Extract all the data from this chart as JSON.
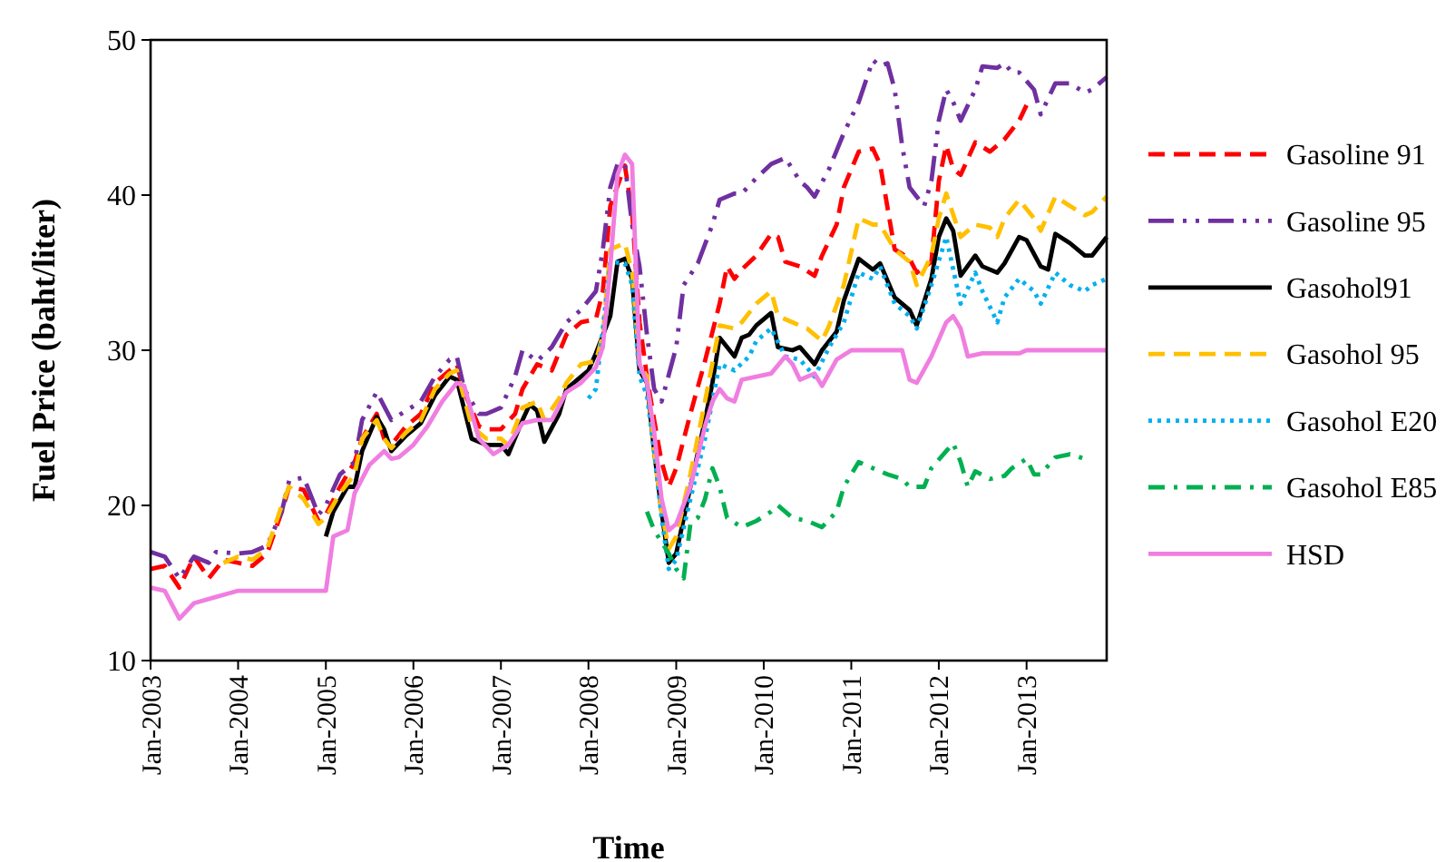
{
  "chart_data": {
    "type": "line",
    "xlabel": "Time",
    "ylabel": "Fuel Price (baht/liter)",
    "xlim": [
      "2003-01",
      "2013-12"
    ],
    "xticks": [
      {
        "value": "2003-01",
        "label": "Jan-2003"
      },
      {
        "value": "2004-01",
        "label": "Jan-2004"
      },
      {
        "value": "2005-01",
        "label": "Jan-2005"
      },
      {
        "value": "2006-01",
        "label": "Jan-2006"
      },
      {
        "value": "2007-01",
        "label": "Jan-2007"
      },
      {
        "value": "2008-01",
        "label": "Jan-2008"
      },
      {
        "value": "2009-01",
        "label": "Jan-2009"
      },
      {
        "value": "2010-01",
        "label": "Jan-2010"
      },
      {
        "value": "2011-01",
        "label": "Jan-2011"
      },
      {
        "value": "2012-01",
        "label": "Jan-2012"
      },
      {
        "value": "2013-01",
        "label": "Jan-2013"
      }
    ],
    "ylim": [
      10,
      50
    ],
    "yticks": [
      10,
      20,
      30,
      40,
      50
    ],
    "grid": false,
    "legend": "right",
    "marker": "none",
    "series": [
      {
        "name": "Gasoline 91",
        "color": "#ff0000",
        "line_style": "dashed",
        "x": [
          "2003-01",
          "2003-03",
          "2003-05",
          "2003-07",
          "2003-09",
          "2003-11",
          "2004-01",
          "2004-03",
          "2004-05",
          "2004-07",
          "2004-08",
          "2004-10",
          "2004-12",
          "2005-01",
          "2005-03",
          "2005-05",
          "2005-06",
          "2005-08",
          "2005-09",
          "2005-10",
          "2005-12",
          "2006-02",
          "2006-04",
          "2006-06",
          "2006-07",
          "2006-08",
          "2006-10",
          "2006-11",
          "2007-01",
          "2007-03",
          "2007-04",
          "2007-06",
          "2007-08",
          "2007-10",
          "2007-12",
          "2008-02",
          "2008-03",
          "2008-04",
          "2008-06",
          "2008-07",
          "2008-08",
          "2008-09",
          "2008-10",
          "2008-11",
          "2008-12",
          "2009-01",
          "2009-03",
          "2009-05",
          "2009-07",
          "2009-08",
          "2009-09",
          "2009-10",
          "2009-12",
          "2010-02",
          "2010-03",
          "2010-04",
          "2010-06",
          "2010-08",
          "2010-09",
          "2010-11",
          "2010-12",
          "2011-02",
          "2011-04",
          "2011-05",
          "2011-07",
          "2011-09",
          "2011-10",
          "2011-12",
          "2012-01",
          "2012-02",
          "2012-03",
          "2012-04",
          "2012-06",
          "2012-08",
          "2012-10",
          "2012-12",
          "2013-01",
          "2013-02"
        ],
        "values": [
          15.9,
          16.1,
          14.7,
          16.7,
          15.3,
          16.5,
          16.3,
          16.1,
          16.9,
          19.6,
          21.2,
          21.0,
          19.0,
          19.4,
          21.2,
          22.8,
          24.3,
          25.9,
          24.3,
          23.9,
          25.1,
          25.9,
          27.9,
          28.7,
          29.1,
          27.3,
          25.1,
          24.9,
          24.9,
          25.9,
          27.5,
          29.1,
          28.7,
          31.0,
          31.8,
          32.0,
          33.8,
          39.3,
          41.9,
          38.9,
          31.8,
          28.3,
          25.5,
          22.8,
          21.2,
          22.4,
          25.9,
          29.3,
          33.0,
          35.4,
          34.6,
          35.2,
          36.1,
          37.5,
          37.3,
          35.7,
          35.4,
          34.8,
          36.1,
          38.1,
          40.5,
          42.8,
          43.0,
          42.0,
          36.5,
          35.9,
          35.0,
          35.7,
          40.9,
          43.2,
          41.7,
          41.3,
          43.4,
          42.8,
          43.6,
          44.8,
          45.8,
          45.6
        ]
      },
      {
        "name": "Gasoline 95",
        "color": "#7030a0",
        "line_style": "dashdotdot",
        "x": [
          "2003-01",
          "2003-03",
          "2003-05",
          "2003-07",
          "2003-09",
          "2003-10",
          "2004-01",
          "2004-03",
          "2004-05",
          "2004-07",
          "2004-08",
          "2004-10",
          "2004-12",
          "2005-01",
          "2005-03",
          "2005-05",
          "2005-06",
          "2005-08",
          "2005-10",
          "2005-12",
          "2006-02",
          "2006-04",
          "2006-06",
          "2006-07",
          "2006-08",
          "2006-10",
          "2006-11",
          "2007-01",
          "2007-03",
          "2007-04",
          "2007-06",
          "2007-08",
          "2007-10",
          "2007-12",
          "2008-02",
          "2008-03",
          "2008-04",
          "2008-05",
          "2008-06",
          "2008-07",
          "2008-08",
          "2008-09",
          "2008-10",
          "2008-11",
          "2009-01",
          "2009-02",
          "2009-04",
          "2009-06",
          "2009-07",
          "2009-09",
          "2009-10",
          "2009-12",
          "2010-02",
          "2010-04",
          "2010-06",
          "2010-07",
          "2010-08",
          "2010-10",
          "2010-12",
          "2011-02",
          "2011-04",
          "2011-05",
          "2011-06",
          "2011-07",
          "2011-08",
          "2011-09",
          "2011-10",
          "2011-11",
          "2011-12",
          "2012-01",
          "2012-02",
          "2012-03",
          "2012-04",
          "2012-06",
          "2012-07",
          "2012-09",
          "2012-10",
          "2012-11",
          "2012-12",
          "2013-02",
          "2013-03",
          "2013-05",
          "2013-07",
          "2013-09",
          "2013-10",
          "2013-12"
        ],
        "values": [
          17.0,
          16.7,
          15.3,
          16.7,
          16.3,
          17.0,
          16.9,
          17.0,
          17.4,
          19.6,
          21.6,
          21.8,
          19.4,
          20.0,
          22.0,
          22.8,
          25.5,
          27.3,
          25.5,
          26.1,
          26.7,
          28.3,
          29.4,
          29.6,
          27.5,
          25.9,
          25.9,
          26.3,
          28.3,
          30.0,
          29.3,
          30.2,
          31.8,
          32.6,
          33.8,
          36.5,
          40.5,
          42.0,
          42.0,
          38.1,
          35.4,
          31.0,
          27.5,
          26.7,
          30.2,
          34.2,
          35.6,
          38.1,
          39.7,
          40.1,
          40.1,
          41.1,
          42.0,
          42.4,
          40.9,
          40.5,
          39.9,
          41.7,
          44.0,
          46.0,
          48.7,
          48.3,
          48.5,
          46.8,
          43.2,
          40.5,
          39.9,
          39.3,
          40.9,
          44.8,
          46.8,
          46.0,
          44.8,
          46.8,
          48.3,
          48.2,
          48.5,
          47.9,
          47.9,
          46.8,
          45.2,
          47.2,
          47.2,
          46.6,
          46.8,
          47.6
        ]
      },
      {
        "name": "Gasohol91",
        "color": "#000000",
        "line_style": "solid",
        "x": [
          "2005-01",
          "2005-02",
          "2005-04",
          "2005-05",
          "2005-06",
          "2005-08",
          "2005-09",
          "2005-10",
          "2005-12",
          "2006-02",
          "2006-04",
          "2006-06",
          "2006-07",
          "2006-09",
          "2006-11",
          "2007-01",
          "2007-02",
          "2007-04",
          "2007-05",
          "2007-06",
          "2007-07",
          "2007-09",
          "2007-10",
          "2007-12",
          "2008-01",
          "2008-02",
          "2008-04",
          "2008-05",
          "2008-06",
          "2008-07",
          "2008-08",
          "2008-09",
          "2008-10",
          "2008-11",
          "2008-12",
          "2009-01",
          "2009-03",
          "2009-05",
          "2009-06",
          "2009-07",
          "2009-09",
          "2009-10",
          "2009-11",
          "2009-12",
          "2010-02",
          "2010-03",
          "2010-05",
          "2010-06",
          "2010-08",
          "2010-09",
          "2010-11",
          "2010-12",
          "2011-02",
          "2011-04",
          "2011-05",
          "2011-07",
          "2011-09",
          "2011-10",
          "2011-12",
          "2012-01",
          "2012-02",
          "2012-03",
          "2012-04",
          "2012-06",
          "2012-07",
          "2012-09",
          "2012-10",
          "2012-12",
          "2013-01",
          "2013-03",
          "2013-04",
          "2013-05",
          "2013-07",
          "2013-09",
          "2013-10",
          "2013-12"
        ],
        "values": [
          18.0,
          19.6,
          21.2,
          21.2,
          23.5,
          25.7,
          24.9,
          23.5,
          24.5,
          25.3,
          27.1,
          28.3,
          28.1,
          24.3,
          23.9,
          23.9,
          23.3,
          25.5,
          26.5,
          26.1,
          24.1,
          25.9,
          27.5,
          28.3,
          28.7,
          29.8,
          32.2,
          35.7,
          35.9,
          34.6,
          28.7,
          27.9,
          23.5,
          19.6,
          16.3,
          16.9,
          21.2,
          25.5,
          27.9,
          30.8,
          29.6,
          30.8,
          31.0,
          31.6,
          32.4,
          30.2,
          30.0,
          30.2,
          29.1,
          30.0,
          31.2,
          33.2,
          35.9,
          35.2,
          35.6,
          33.4,
          32.6,
          31.6,
          34.6,
          37.3,
          38.5,
          37.7,
          34.8,
          36.1,
          35.4,
          35.0,
          35.6,
          37.3,
          37.1,
          35.4,
          35.2,
          37.5,
          36.9,
          36.1,
          36.1,
          37.3
        ]
      },
      {
        "name": "Gasohol 95",
        "color": "#ffc000",
        "line_style": "dashed",
        "x": [
          "2003-11",
          "2004-01",
          "2004-03",
          "2004-05",
          "2004-07",
          "2004-08",
          "2004-10",
          "2004-12",
          "2005-01",
          "2005-03",
          "2005-05",
          "2005-06",
          "2005-08",
          "2005-09",
          "2005-10",
          "2005-12",
          "2006-02",
          "2006-04",
          "2006-06",
          "2006-07",
          "2006-09",
          "2006-11",
          "2007-01",
          "2007-02",
          "2007-04",
          "2007-06",
          "2007-07",
          "2007-09",
          "2007-10",
          "2007-12",
          "2008-02",
          "2008-03",
          "2008-04",
          "2008-06",
          "2008-07",
          "2008-08",
          "2008-09",
          "2008-10",
          "2008-11",
          "2008-12",
          "2009-01",
          "2009-03",
          "2009-05",
          "2009-07",
          "2009-09",
          "2009-10",
          "2009-12",
          "2010-02",
          "2010-03",
          "2010-05",
          "2010-07",
          "2010-09",
          "2010-10",
          "2010-12",
          "2011-02",
          "2011-04",
          "2011-05",
          "2011-07",
          "2011-09",
          "2011-10",
          "2011-12",
          "2012-01",
          "2012-02",
          "2012-04",
          "2012-06",
          "2012-08",
          "2012-09",
          "2012-10",
          "2012-12",
          "2013-02",
          "2013-03",
          "2013-05",
          "2013-07",
          "2013-09",
          "2013-10",
          "2013-12"
        ],
        "values": [
          16.3,
          16.7,
          16.5,
          17.2,
          20.0,
          21.2,
          20.4,
          18.8,
          19.2,
          20.8,
          22.0,
          24.3,
          25.5,
          24.3,
          23.7,
          24.7,
          25.5,
          27.5,
          28.5,
          28.7,
          25.1,
          24.3,
          24.3,
          23.9,
          26.3,
          26.7,
          25.5,
          26.9,
          27.9,
          29.1,
          29.3,
          31.0,
          36.5,
          36.9,
          35.0,
          29.1,
          28.3,
          23.5,
          19.6,
          17.2,
          18.0,
          22.0,
          26.7,
          31.6,
          31.4,
          31.8,
          33.0,
          33.8,
          32.2,
          31.8,
          31.4,
          30.6,
          31.6,
          34.2,
          38.5,
          38.1,
          38.1,
          36.5,
          35.7,
          34.2,
          36.1,
          38.5,
          40.1,
          37.3,
          38.1,
          37.9,
          37.3,
          38.5,
          39.7,
          38.5,
          37.7,
          39.9,
          39.3,
          38.7,
          38.9,
          39.9
        ]
      },
      {
        "name": "Gasohol E20",
        "color": "#00b0f0",
        "line_style": "dotted",
        "x": [
          "2008-01",
          "2008-02",
          "2008-03",
          "2008-04",
          "2008-06",
          "2008-07",
          "2008-08",
          "2008-09",
          "2008-10",
          "2008-11",
          "2008-12",
          "2009-01",
          "2009-03",
          "2009-05",
          "2009-07",
          "2009-09",
          "2009-11",
          "2009-12",
          "2010-02",
          "2010-04",
          "2010-06",
          "2010-08",
          "2010-10",
          "2010-12",
          "2011-02",
          "2011-04",
          "2011-05",
          "2011-07",
          "2011-09",
          "2011-10",
          "2011-12",
          "2012-02",
          "2012-04",
          "2012-06",
          "2012-07",
          "2012-09",
          "2012-10",
          "2012-12",
          "2013-02",
          "2013-03",
          "2013-05",
          "2013-07",
          "2013-09",
          "2013-10",
          "2013-12"
        ],
        "values": [
          26.9,
          27.5,
          31.4,
          35.7,
          35.6,
          34.2,
          28.3,
          27.1,
          23.5,
          19.2,
          15.9,
          16.5,
          20.4,
          24.3,
          29.1,
          28.7,
          29.6,
          30.6,
          31.4,
          29.6,
          29.4,
          28.3,
          30.2,
          31.8,
          35.0,
          34.6,
          35.4,
          33.0,
          32.2,
          31.4,
          34.2,
          37.3,
          33.0,
          35.0,
          33.8,
          31.8,
          33.4,
          34.6,
          33.8,
          33.0,
          35.0,
          34.2,
          33.8,
          34.2,
          34.6
        ]
      },
      {
        "name": "Gasohol E85",
        "color": "#00b050",
        "line_style": "dashdot",
        "x": [
          "2008-09",
          "2008-10",
          "2008-12",
          "2009-01",
          "2009-02",
          "2009-03",
          "2009-04",
          "2009-05",
          "2009-06",
          "2009-07",
          "2009-08",
          "2009-10",
          "2009-12",
          "2010-02",
          "2010-03",
          "2010-05",
          "2010-07",
          "2010-09",
          "2010-11",
          "2010-12",
          "2011-02",
          "2011-04",
          "2011-06",
          "2011-08",
          "2011-09",
          "2011-11",
          "2011-12",
          "2012-02",
          "2012-03",
          "2012-04",
          "2012-05",
          "2012-06",
          "2012-08",
          "2012-10",
          "2012-11",
          "2013-01",
          "2013-02",
          "2013-03",
          "2013-05",
          "2013-07",
          "2013-09"
        ],
        "values": [
          19.6,
          18.4,
          16.9,
          15.9,
          15.3,
          18.8,
          19.2,
          20.4,
          22.4,
          21.2,
          19.2,
          18.6,
          19.0,
          19.6,
          20.0,
          19.2,
          19.0,
          18.6,
          19.6,
          21.2,
          22.8,
          22.4,
          22.0,
          21.7,
          21.2,
          21.2,
          22.4,
          23.5,
          24.0,
          22.8,
          21.2,
          22.2,
          21.7,
          21.9,
          22.4,
          23.0,
          22.0,
          22.0,
          23.1,
          23.3,
          23.0
        ]
      },
      {
        "name": "HSD",
        "color": "#f07ee0",
        "line_style": "solid",
        "x": [
          "2003-01",
          "2003-03",
          "2003-05",
          "2003-07",
          "2003-10",
          "2004-01",
          "2005-01",
          "2005-02",
          "2005-04",
          "2005-05",
          "2005-07",
          "2005-09",
          "2005-10",
          "2005-11",
          "2006-01",
          "2006-03",
          "2006-05",
          "2006-07",
          "2006-08",
          "2006-10",
          "2006-12",
          "2007-02",
          "2007-04",
          "2007-06",
          "2007-08",
          "2007-10",
          "2007-12",
          "2008-02",
          "2008-03",
          "2008-04",
          "2008-05",
          "2008-06",
          "2008-07",
          "2008-08",
          "2008-09",
          "2008-10",
          "2008-11",
          "2008-12",
          "2009-01",
          "2009-03",
          "2009-05",
          "2009-06",
          "2009-07",
          "2009-08",
          "2009-09",
          "2009-10",
          "2009-12",
          "2010-02",
          "2010-04",
          "2010-05",
          "2010-06",
          "2010-08",
          "2010-09",
          "2010-11",
          "2011-01",
          "2011-08",
          "2011-09",
          "2011-10",
          "2011-12",
          "2012-02",
          "2012-03",
          "2012-04",
          "2012-05",
          "2012-07",
          "2012-12",
          "2013-01",
          "2013-12"
        ],
        "values": [
          14.7,
          14.5,
          12.7,
          13.7,
          14.1,
          14.5,
          14.5,
          18.0,
          18.4,
          20.8,
          22.6,
          23.5,
          23.0,
          23.1,
          23.9,
          25.1,
          26.7,
          27.9,
          27.7,
          24.3,
          23.3,
          23.9,
          25.3,
          25.5,
          25.5,
          27.3,
          27.9,
          28.9,
          30.2,
          35.4,
          41.3,
          42.6,
          42.0,
          29.1,
          27.9,
          24.7,
          20.4,
          18.4,
          18.8,
          21.2,
          25.1,
          26.7,
          27.5,
          26.9,
          26.7,
          28.1,
          28.3,
          28.5,
          29.6,
          29.1,
          28.1,
          28.5,
          27.7,
          29.4,
          30.0,
          30.0,
          28.1,
          27.9,
          29.6,
          31.8,
          32.2,
          31.4,
          29.6,
          29.8,
          29.8,
          30.0,
          30.0
        ]
      }
    ]
  }
}
